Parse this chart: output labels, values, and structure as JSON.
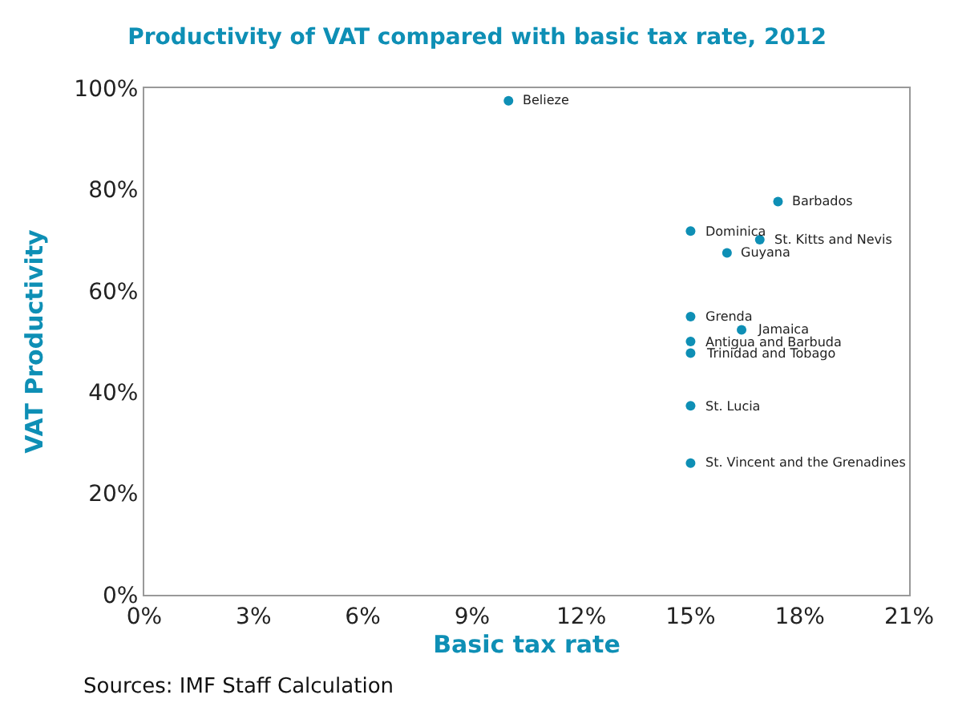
{
  "chart_data": {
    "type": "scatter",
    "title": "Productivity of VAT compared with basic tax rate, 2012",
    "xlabel": "Basic tax rate",
    "ylabel": "VAT Productivity",
    "x": [
      10,
      17.4,
      15,
      16.9,
      16,
      15,
      16.4,
      15,
      15,
      15,
      15
    ],
    "series": [
      {
        "color": "#0e8fb5",
        "values": [
          97.5,
          77.6,
          71.8,
          70.1,
          67.5,
          54.9,
          52.3,
          50.0,
          47.7,
          37.3,
          26.0
        ]
      }
    ],
    "marker": "circle",
    "annotations": [
      {
        "text": "Belieze",
        "x": 10,
        "y": 97.5
      },
      {
        "text": "Barbados",
        "x": 17.4,
        "y": 77.6
      },
      {
        "text": "Dominica",
        "x": 15,
        "y": 71.8
      },
      {
        "text": "St. Kitts and Nevis",
        "x": 16.9,
        "y": 70.1
      },
      {
        "text": "Guyana",
        "x": 16,
        "y": 67.5
      },
      {
        "text": "Grenda",
        "x": 15,
        "y": 54.9
      },
      {
        "text": "Jamaica",
        "x": 16.4,
        "y": 52.3
      },
      {
        "text": "Antigua and Barbuda",
        "x": 15,
        "y": 50.0
      },
      {
        "text": "Trinidad and Tobago",
        "x": 15,
        "y": 47.7
      },
      {
        "text": "St. Lucia",
        "x": 15,
        "y": 37.3
      },
      {
        "text": "St. Vincent and the Grenadines",
        "x": 15,
        "y": 26.0
      },
      "Sources: IMF Staff Calculation"
    ],
    "xlim": [
      0,
      21
    ],
    "xticks": [
      {
        "value": 0,
        "label": "0%"
      },
      {
        "value": 3,
        "label": "3%"
      },
      {
        "value": 6,
        "label": "6%"
      },
      {
        "value": 9,
        "label": "9%"
      },
      {
        "value": 12,
        "label": "12%"
      },
      {
        "value": 15,
        "label": "15%"
      },
      {
        "value": 18,
        "label": "18%"
      },
      {
        "value": 21,
        "label": "21%"
      }
    ],
    "ylim": [
      0,
      100
    ],
    "yticks": [
      {
        "value": 0,
        "label": "0%"
      },
      {
        "value": 20,
        "label": "20%"
      },
      {
        "value": 40,
        "label": "40%"
      },
      {
        "value": 60,
        "label": "60%"
      },
      {
        "value": 80,
        "label": "80%"
      },
      {
        "value": 100,
        "label": "100%"
      }
    ],
    "tick_labels": [
      "x",
      "y"
    ]
  }
}
